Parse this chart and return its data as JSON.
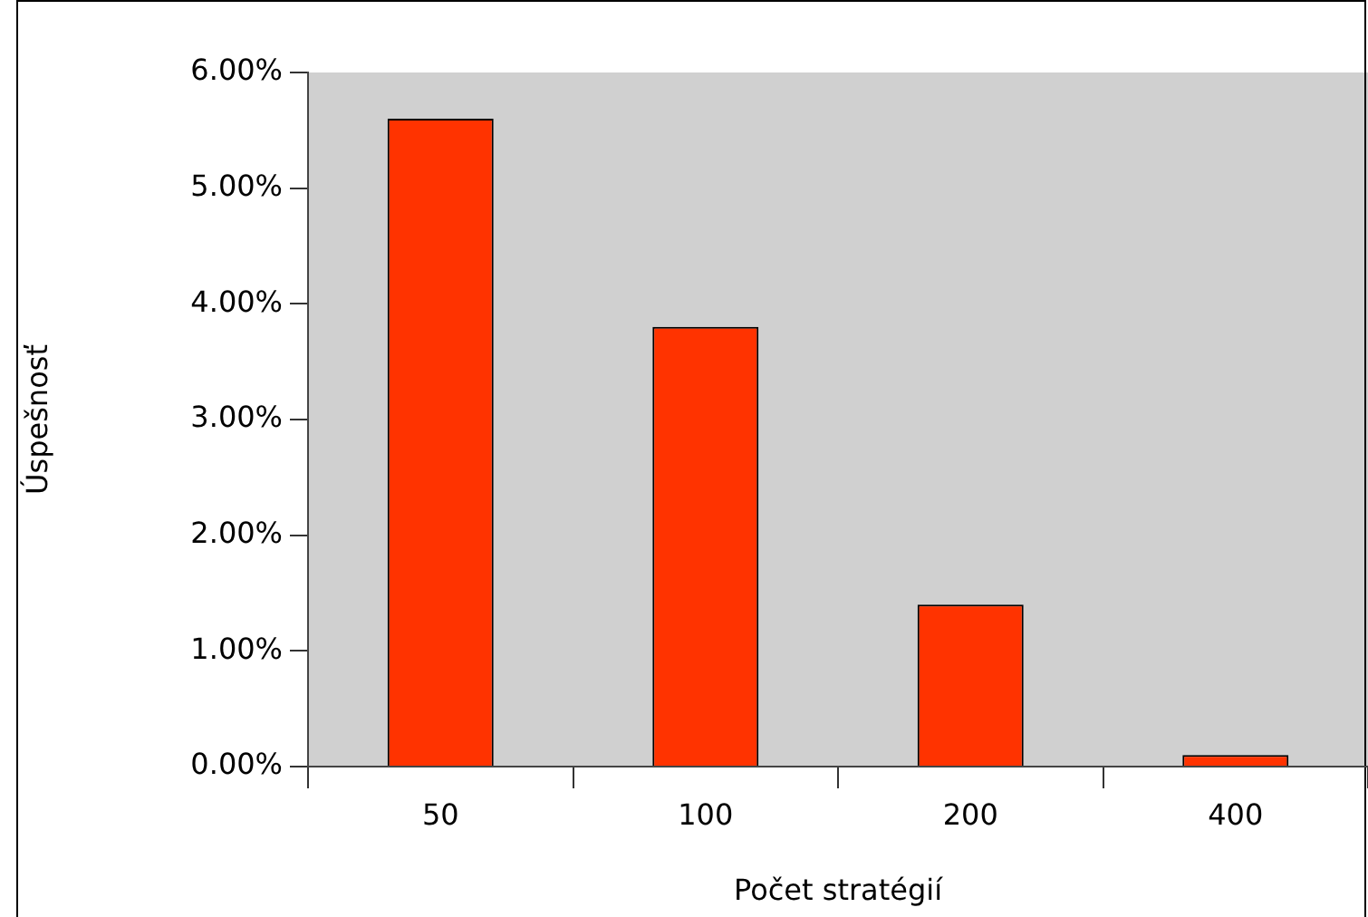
{
  "chart_data": {
    "type": "bar",
    "xlabel": "Počet stratégií",
    "ylabel": "Úspešnosť",
    "categories": [
      "50",
      "100",
      "200",
      "400"
    ],
    "values": [
      5.6,
      3.8,
      1.4,
      0.1
    ],
    "color": "#ff3300",
    "ylim": [
      0,
      6
    ],
    "yticks": [
      {
        "value": 0,
        "label": "0.00%"
      },
      {
        "value": 1,
        "label": "1.00%"
      },
      {
        "value": 2,
        "label": "2.00%"
      },
      {
        "value": 3,
        "label": "3.00%"
      },
      {
        "value": 4,
        "label": "4.00%"
      },
      {
        "value": 5,
        "label": "5.00%"
      },
      {
        "value": 6,
        "label": "6.00%"
      }
    ],
    "grid": false,
    "legend": false
  }
}
